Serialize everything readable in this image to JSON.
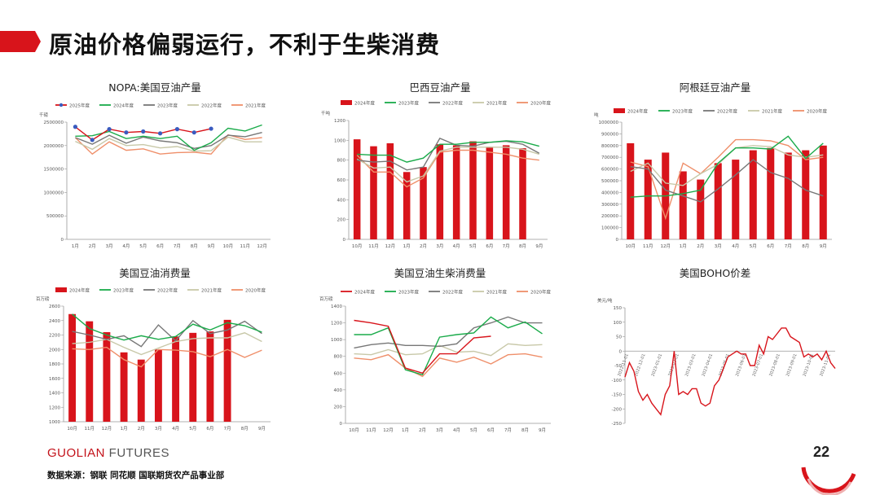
{
  "header": {
    "title": "原油价格偏弱运行，不利于生柴消费"
  },
  "footer": {
    "brand_part1": "GUOLIAN",
    "brand_part2": " FUTURES",
    "source": "数据来源：钢联  同花顺  国联期货农产品事业部",
    "page": "22"
  },
  "colors": {
    "accent": "#d8141b"
  },
  "chart_data": [
    {
      "id": "nopa",
      "type": "line",
      "title": "NOPA:美国豆油产量",
      "unit": "千磅",
      "categories": [
        "1月",
        "2月",
        "3月",
        "4月",
        "5月",
        "6月",
        "7月",
        "8月",
        "9月",
        "10月",
        "11月",
        "12月"
      ],
      "ylim": [
        0,
        2500000
      ],
      "yticks": [
        0,
        500000,
        1000000,
        1500000,
        2000000,
        2500000
      ],
      "series": [
        {
          "name": "2025年度",
          "color": "#d8141b",
          "marker": true,
          "values": [
            2400000,
            2120000,
            2350000,
            2280000,
            2300000,
            2260000,
            2350000,
            2280000,
            2360000,
            null,
            null,
            null
          ]
        },
        {
          "name": "2024年度",
          "color": "#1aab4a",
          "values": [
            2200000,
            2210000,
            2300000,
            2150000,
            2200000,
            2150000,
            2200000,
            1900000,
            2060000,
            2370000,
            2310000,
            2440000
          ]
        },
        {
          "name": "2023年度",
          "color": "#777777",
          "values": [
            2170000,
            2030000,
            2220000,
            2050000,
            2180000,
            2100000,
            2060000,
            1940000,
            2000000,
            2220000,
            2190000,
            2280000
          ]
        },
        {
          "name": "2022年度",
          "color": "#c8c8a8",
          "values": [
            2090000,
            1920000,
            2150000,
            2000000,
            2020000,
            1950000,
            1980000,
            1880000,
            1890000,
            2180000,
            2080000,
            2080000
          ]
        },
        {
          "name": "2021年度",
          "color": "#ef8f6a",
          "values": [
            2170000,
            1820000,
            2080000,
            1900000,
            1930000,
            1820000,
            1850000,
            1860000,
            1820000,
            2230000,
            2130000,
            2170000
          ]
        }
      ]
    },
    {
      "id": "brazil",
      "type": "bar",
      "title": "巴西豆油产量",
      "unit": "千吨",
      "categories": [
        "10月",
        "11月",
        "12月",
        "1月",
        "2月",
        "3月",
        "4月",
        "5月",
        "6月",
        "7月",
        "8月",
        "9月"
      ],
      "ylim": [
        0,
        1200
      ],
      "yticks": [
        0,
        200,
        400,
        600,
        800,
        1000,
        1200
      ],
      "bars": {
        "name": "2024年度",
        "color": "#d8141b",
        "values": [
          1010,
          940,
          970,
          680,
          730,
          960,
          950,
          990,
          935,
          950,
          920,
          null
        ]
      },
      "series": [
        {
          "name": "2023年度",
          "color": "#1aab4a",
          "values": [
            860,
            850,
            850,
            780,
            820,
            960,
            960,
            980,
            980,
            995,
            985,
            940
          ]
        },
        {
          "name": "2022年度",
          "color": "#777777",
          "values": [
            800,
            780,
            790,
            700,
            730,
            1020,
            950,
            940,
            980,
            990,
            960,
            870
          ]
        },
        {
          "name": "2021年度",
          "color": "#c8c8a8",
          "values": [
            810,
            720,
            730,
            580,
            640,
            890,
            930,
            930,
            930,
            930,
            910,
            860
          ]
        },
        {
          "name": "2020年度",
          "color": "#ef8f6a",
          "values": [
            850,
            680,
            680,
            530,
            620,
            880,
            900,
            900,
            880,
            860,
            820,
            800
          ]
        }
      ]
    },
    {
      "id": "argentina",
      "type": "bar",
      "title": "阿根廷豆油产量",
      "unit": "吨",
      "categories": [
        "10月",
        "11月",
        "12月",
        "1月",
        "2月",
        "3月",
        "4月",
        "5月",
        "6月",
        "7月",
        "8月",
        "9月"
      ],
      "ylim": [
        0,
        1000000
      ],
      "yticks": [
        0,
        100000,
        200000,
        300000,
        400000,
        500000,
        600000,
        700000,
        800000,
        900000,
        1000000
      ],
      "bars": {
        "name": "2024年度",
        "color": "#d8141b",
        "values": [
          820000,
          680000,
          740000,
          580000,
          510000,
          650000,
          680000,
          760000,
          780000,
          740000,
          760000,
          800000
        ]
      },
      "series": [
        {
          "name": "2023年度",
          "color": "#1aab4a",
          "values": [
            360000,
            370000,
            370000,
            390000,
            420000,
            650000,
            780000,
            780000,
            770000,
            880000,
            690000,
            820000
          ]
        },
        {
          "name": "2022年度",
          "color": "#777777",
          "values": [
            620000,
            600000,
            420000,
            370000,
            320000,
            430000,
            550000,
            680000,
            570000,
            520000,
            420000,
            370000
          ]
        },
        {
          "name": "2021年度",
          "color": "#c8c8a8",
          "values": [
            580000,
            650000,
            480000,
            460000,
            560000,
            640000,
            780000,
            800000,
            790000,
            720000,
            700000,
            720000
          ]
        },
        {
          "name": "2020年度",
          "color": "#ef8f6a",
          "values": [
            660000,
            620000,
            180000,
            650000,
            560000,
            700000,
            850000,
            850000,
            840000,
            800000,
            680000,
            700000
          ]
        }
      ]
    },
    {
      "id": "us_consumption",
      "type": "bar",
      "title": "美国豆油消费量",
      "unit": "百万磅",
      "categories": [
        "10月",
        "11月",
        "12月",
        "1月",
        "2月",
        "3月",
        "4月",
        "5月",
        "6月",
        "7月",
        "8月",
        "9月"
      ],
      "ylim": [
        1000,
        2600
      ],
      "yticks": [
        1000,
        1200,
        1400,
        1600,
        1800,
        2000,
        2200,
        2400,
        2600
      ],
      "bars": {
        "name": "2024年度",
        "color": "#d8141b",
        "values": [
          2490,
          2390,
          2240,
          1960,
          1860,
          2000,
          2180,
          2230,
          2250,
          2410,
          null,
          null
        ]
      },
      "series": [
        {
          "name": "2023年度",
          "color": "#1aab4a",
          "values": [
            2490,
            2290,
            2200,
            2130,
            2190,
            2140,
            2180,
            2350,
            2270,
            2370,
            2330,
            2240
          ]
        },
        {
          "name": "2022年度",
          "color": "#777777",
          "values": [
            2250,
            2200,
            2140,
            2190,
            2040,
            2340,
            2120,
            2400,
            2220,
            2270,
            2390,
            2220
          ]
        },
        {
          "name": "2021年度",
          "color": "#c8c8a8",
          "values": [
            2080,
            2100,
            2140,
            2030,
            1930,
            2020,
            2110,
            2150,
            2160,
            2160,
            2230,
            2110
          ]
        },
        {
          "name": "2020年度",
          "color": "#ef8f6a",
          "values": [
            2010,
            2000,
            2030,
            1860,
            1760,
            2000,
            1990,
            1970,
            1900,
            2000,
            1890,
            1990
          ]
        }
      ]
    },
    {
      "id": "us_biodiesel",
      "type": "line",
      "title": "美国豆油生柴消费量",
      "unit": "百万磅",
      "categories": [
        "10月",
        "11月",
        "12月",
        "1月",
        "2月",
        "3月",
        "4月",
        "5月",
        "6月",
        "7月",
        "8月",
        "9月"
      ],
      "ylim": [
        0,
        1400
      ],
      "yticks": [
        0,
        200,
        400,
        600,
        800,
        1000,
        1200,
        1400
      ],
      "series": [
        {
          "name": "2024年度",
          "color": "#d8141b",
          "values": [
            1230,
            1200,
            1160,
            660,
            600,
            830,
            830,
            1020,
            1040,
            null,
            null,
            null
          ]
        },
        {
          "name": "2023年度",
          "color": "#1aab4a",
          "values": [
            1060,
            1060,
            1140,
            640,
            580,
            1030,
            1060,
            1080,
            1270,
            1140,
            1210,
            1070
          ]
        },
        {
          "name": "2022年度",
          "color": "#777777",
          "values": [
            900,
            940,
            960,
            930,
            930,
            920,
            950,
            1140,
            1200,
            1270,
            1200,
            1200
          ]
        },
        {
          "name": "2021年度",
          "color": "#c8c8a8",
          "values": [
            830,
            820,
            880,
            820,
            830,
            930,
            850,
            860,
            810,
            950,
            930,
            940
          ]
        },
        {
          "name": "2020年度",
          "color": "#ef8f6a",
          "values": [
            780,
            760,
            820,
            660,
            560,
            780,
            730,
            790,
            710,
            820,
            830,
            790
          ]
        }
      ]
    },
    {
      "id": "boho",
      "type": "line",
      "title": "美国BOHO价差",
      "unit": "美元/吨",
      "ylim": [
        -250,
        150
      ],
      "yticks": [
        -250,
        -200,
        -150,
        -100,
        -50,
        0,
        50,
        100,
        150
      ],
      "date_labels": [
        "2022-11-01",
        "2022-12-01",
        "2023-01-01",
        "2023-02-01",
        "2023-03-01",
        "2023-04-01",
        "2023-05-01",
        "2023-06-01",
        "2023-07-01",
        "2023-08-01",
        "2023-09-01",
        "2023-10-01",
        "2023-11-01"
      ],
      "series": [
        {
          "name": "BOHO",
          "color": "#d8141b",
          "values": [
            -90,
            -40,
            -70,
            -140,
            -170,
            -150,
            -180,
            -200,
            -220,
            -150,
            -120,
            0,
            -150,
            -140,
            -150,
            -130,
            -130,
            -180,
            -190,
            -180,
            -120,
            -100,
            -60,
            -20,
            -10,
            0,
            -10,
            -10,
            -50,
            -50,
            20,
            -10,
            50,
            40,
            60,
            80,
            80,
            50,
            40,
            30,
            -20,
            -10,
            -20,
            -10,
            -30,
            0,
            -40,
            -60
          ]
        }
      ]
    }
  ]
}
